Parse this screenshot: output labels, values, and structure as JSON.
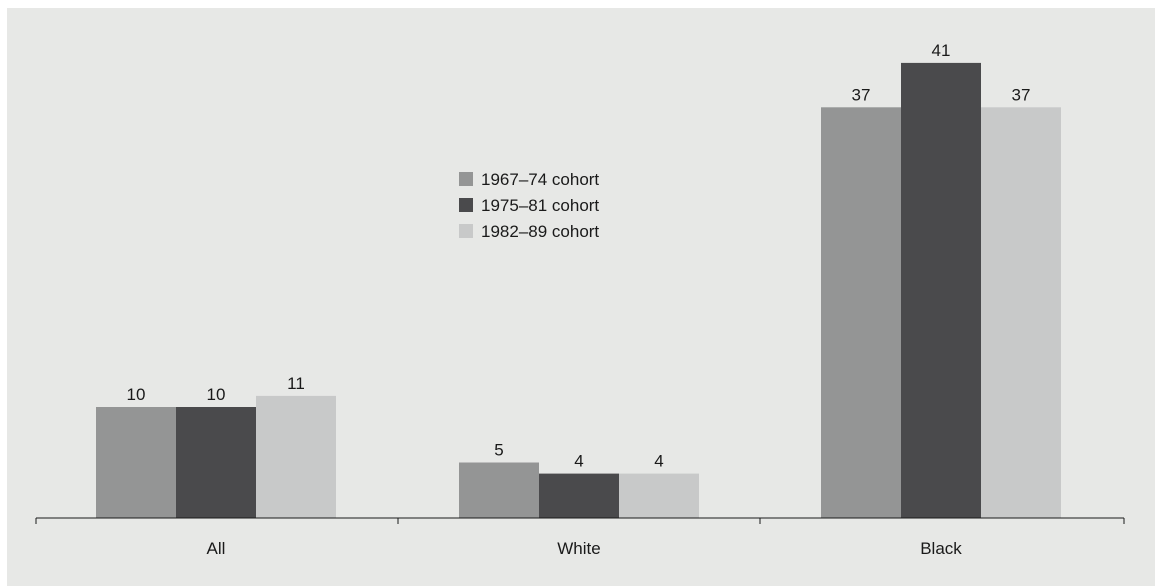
{
  "chart_data": {
    "type": "bar",
    "categories": [
      "All",
      "White",
      "Black"
    ],
    "series": [
      {
        "name": "1967–74 cohort",
        "values": [
          10,
          5,
          37
        ],
        "color": "#949595"
      },
      {
        "name": "1975–81 cohort",
        "values": [
          10,
          4,
          41
        ],
        "color": "#4a4a4c"
      },
      {
        "name": "1982–89 cohort",
        "values": [
          11,
          4,
          37
        ],
        "color": "#c8c9c9"
      }
    ],
    "title": "",
    "xlabel": "",
    "ylabel": "",
    "legend_position": "center",
    "grid": false,
    "background": "#e7e8e6"
  }
}
